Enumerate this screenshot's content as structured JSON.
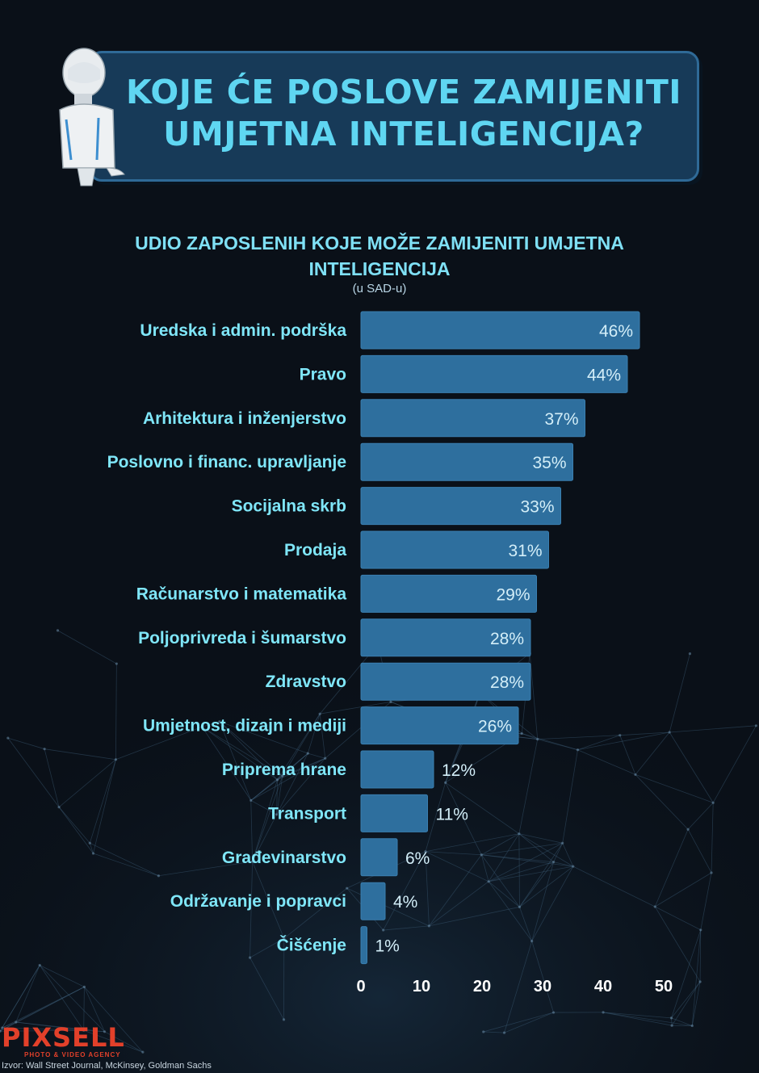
{
  "title": {
    "line1": "KOJE ĆE POSLOVE ZAMIJENITI",
    "line2": "UMJETNA INTELIGENCIJA?"
  },
  "chart_data": {
    "type": "bar",
    "orientation": "horizontal",
    "title": "UDIO ZAPOSLENIH KOJE MOŽE ZAMIJENITI UMJETNA INTELIGENCIJA",
    "subtitle": "(u SAD-u)",
    "categories": [
      "Uredska i admin. podrška",
      "Pravo",
      "Arhitektura i inženjerstvo",
      "Poslovno i financ. upravljanje",
      "Socijalna skrb",
      "Prodaja",
      "Računarstvo i matematika",
      "Poljoprivreda i šumarstvo",
      "Zdravstvo",
      "Umjetnost, dizajn i mediji",
      "Priprema hrane",
      "Transport",
      "Građevinarstvo",
      "Održavanje i popravci",
      "Čišćenje"
    ],
    "values": [
      46,
      44,
      37,
      35,
      33,
      31,
      29,
      28,
      28,
      26,
      12,
      11,
      6,
      4,
      1
    ],
    "value_labels": [
      "46%",
      "44%",
      "37%",
      "35%",
      "33%",
      "31%",
      "29%",
      "28%",
      "28%",
      "26%",
      "12%",
      "11%",
      "6%",
      "4%",
      "1%"
    ],
    "xlim": [
      0,
      50
    ],
    "xticks": [
      "0",
      "10",
      "20",
      "30",
      "40",
      "50"
    ],
    "xlabel": "",
    "ylabel": "",
    "grid": false,
    "legend": "none"
  },
  "colors": {
    "bar": "#2e6f9e",
    "bar_edge": "#3a7fb0",
    "category_text": "#7fe6f8",
    "value_text": "#d3eef8",
    "tick_text": "#ffffff",
    "title_text": "#5fd6f2",
    "logo": "#e2402a"
  },
  "branding": {
    "logo": "PIXSELL",
    "logo_tagline": "PHOTO & VIDEO AGENCY"
  },
  "source": "Izvor: Wall Street Journal, McKinsey, Goldman Sachs"
}
